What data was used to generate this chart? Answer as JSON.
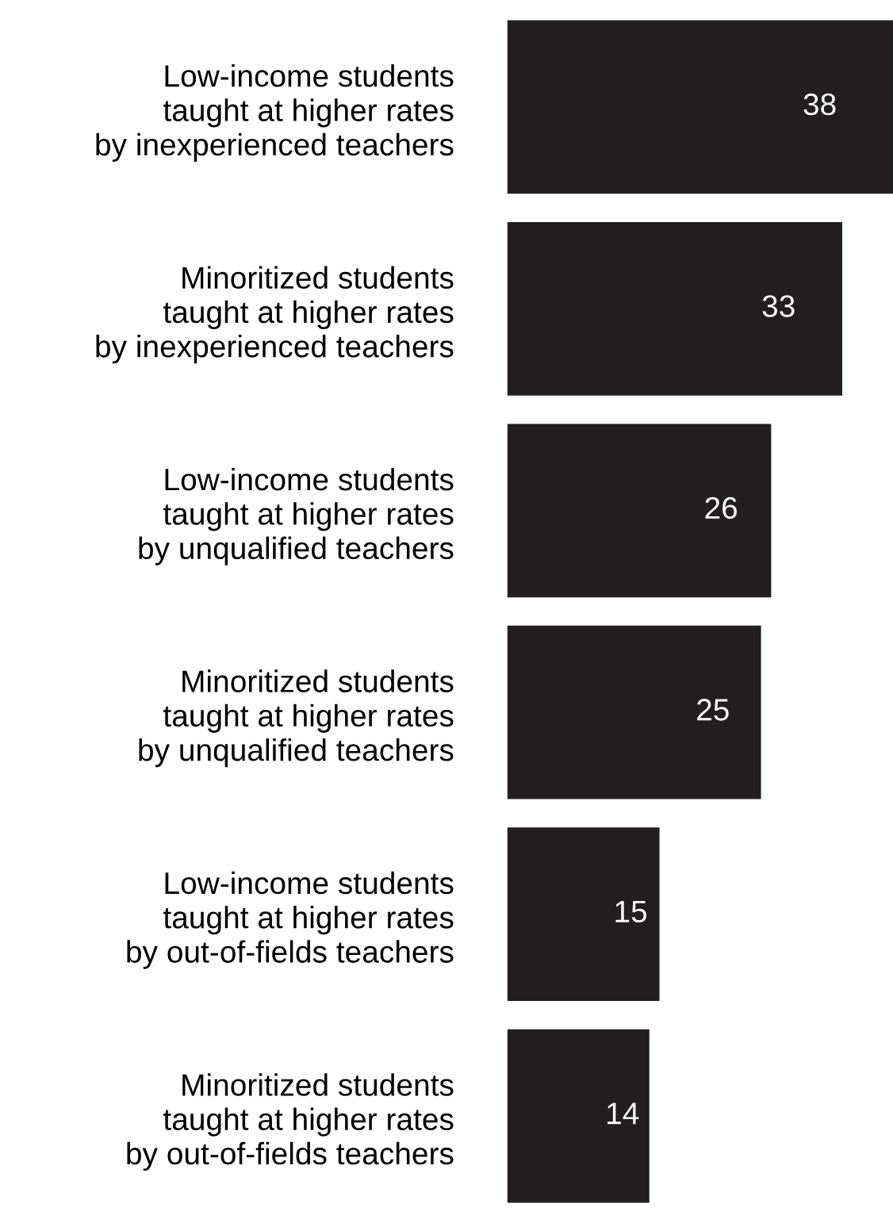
{
  "chart_data": {
    "type": "bar",
    "orientation": "horizontal",
    "data_labels": true,
    "categories": [
      "Low-income students\ntaught at higher rates\nby inexperienced teachers",
      "Minoritized students\ntaught at higher rates\nby inexperienced teachers",
      "Low-income students\ntaught at higher rates\nby unqualified teachers",
      "Minoritized students\ntaught at higher rates\nby unqualified teachers",
      "Low-income students\ntaught at higher rates\nby out-of-fields teachers",
      "Minoritized students\ntaught at higher rates\nby out-of-fields teachers"
    ],
    "values": [
      38,
      33,
      26,
      25,
      15,
      14
    ],
    "color": "#231f20"
  }
}
